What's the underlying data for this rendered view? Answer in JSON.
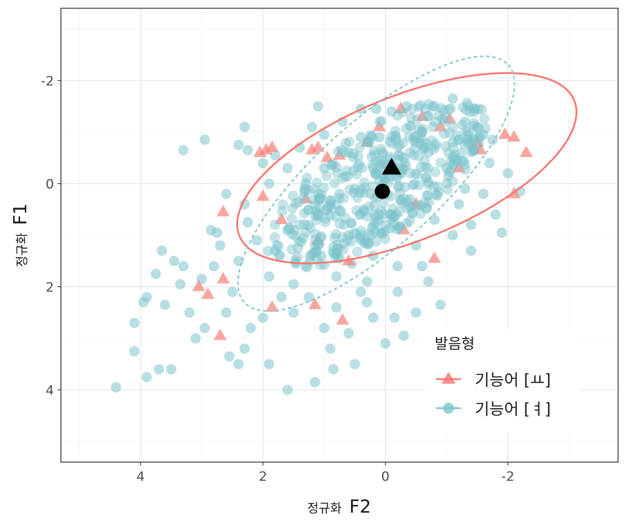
{
  "chart_data": {
    "type": "scatter",
    "title": "",
    "xlabel_prefix": "정규화",
    "xlabel_main": "F2",
    "ylabel_prefix": "정규화",
    "ylabel_main": "F1",
    "x_reversed": true,
    "y_reversed": true,
    "xlim": [
      5.3,
      -3.8
    ],
    "ylim": [
      -3.4,
      5.4
    ],
    "x_ticks": [
      4,
      2,
      0,
      -2
    ],
    "x_tick_labels": [
      "4",
      "2",
      "0",
      "-2"
    ],
    "y_ticks": [
      -2,
      0,
      2,
      4
    ],
    "y_tick_labels": [
      "-2",
      "0",
      "2",
      "4"
    ],
    "grid": true,
    "legend": {
      "title": "발음형",
      "placement": "bottom-right",
      "entries": [
        {
          "label": "기능어 [ㅛ]",
          "color": "#F8766D",
          "shape": "triangle"
        },
        {
          "label": "기능어 [ㅕ]",
          "color": "#7DC4CC",
          "shape": "circle"
        }
      ]
    },
    "series": [
      {
        "key": "yo",
        "color": "#F8766D",
        "marker": "triangle",
        "ellipse_style": "solid",
        "mean": [
          -0.1,
          -0.3
        ],
        "ellipse": {
          "center": [
            -0.35,
            -0.3
          ],
          "semi_major": 2.95,
          "semi_minor": 1.4,
          "angle_deg": 22
        },
        "points": [
          [
            2.05,
            -0.6
          ],
          [
            1.85,
            -0.7
          ],
          [
            1.95,
            -0.65
          ],
          [
            1.2,
            -0.65
          ],
          [
            1.1,
            -0.7
          ],
          [
            0.95,
            -0.5
          ],
          [
            -0.25,
            -1.45
          ],
          [
            -0.6,
            -1.3
          ],
          [
            -1.05,
            -1.25
          ],
          [
            -1.5,
            -0.8
          ],
          [
            -1.55,
            -0.65
          ],
          [
            -1.95,
            -0.95
          ],
          [
            -2.1,
            -0.9
          ],
          [
            -2.3,
            -0.6
          ],
          [
            -2.1,
            0.2
          ],
          [
            -1.2,
            -0.3
          ],
          [
            2.65,
            0.55
          ],
          [
            2.0,
            0.25
          ],
          [
            1.1,
            1.1
          ],
          [
            0.6,
            1.5
          ],
          [
            3.05,
            2.0
          ],
          [
            2.9,
            2.15
          ],
          [
            2.65,
            1.85
          ],
          [
            2.7,
            2.95
          ],
          [
            1.85,
            2.4
          ],
          [
            1.15,
            2.35
          ],
          [
            0.7,
            2.65
          ],
          [
            0.05,
            0.2
          ],
          [
            -0.3,
            0.9
          ],
          [
            -0.8,
            1.45
          ],
          [
            0.3,
            -0.8
          ],
          [
            0.75,
            -0.55
          ],
          [
            1.3,
            0.3
          ],
          [
            0.1,
            -1.1
          ],
          [
            -0.9,
            -1.1
          ],
          [
            1.7,
            0.7
          ],
          [
            -0.5,
            0.4
          ]
        ]
      },
      {
        "key": "yeo",
        "color": "#7DC4CC",
        "marker": "circle",
        "ellipse_style": "dashed",
        "mean": [
          0.05,
          0.15
        ],
        "ellipse": {
          "center": [
            0.15,
            0.0
          ],
          "semi_major": 2.9,
          "semi_minor": 1.2,
          "angle_deg": 42
        },
        "points": [
          [
            4.4,
            3.95
          ],
          [
            3.9,
            3.75
          ],
          [
            3.7,
            3.6
          ],
          [
            3.5,
            3.6
          ],
          [
            4.1,
            3.25
          ],
          [
            3.9,
            2.2
          ],
          [
            3.95,
            2.3
          ],
          [
            4.1,
            2.7
          ],
          [
            3.6,
            2.35
          ],
          [
            3.35,
            1.95
          ],
          [
            3.75,
            1.75
          ],
          [
            3.3,
            1.6
          ],
          [
            3.65,
            1.3
          ],
          [
            3.0,
            1.85
          ],
          [
            2.85,
            0.9
          ],
          [
            2.75,
            0.95
          ],
          [
            3.3,
            -0.65
          ],
          [
            2.95,
            -0.85
          ],
          [
            2.4,
            -0.75
          ],
          [
            2.3,
            -1.1
          ],
          [
            2.25,
            -0.65
          ],
          [
            1.2,
            -1.1
          ],
          [
            1.1,
            -1.5
          ],
          [
            0.15,
            -1.45
          ],
          [
            -0.35,
            -1.5
          ],
          [
            -1.1,
            -1.65
          ],
          [
            -1.45,
            -1.4
          ],
          [
            -1.5,
            -1.1
          ],
          [
            -1.6,
            -0.95
          ],
          [
            -1.75,
            -0.85
          ],
          [
            -1.45,
            -0.65
          ],
          [
            -2.2,
            0.15
          ],
          [
            -1.9,
            0.95
          ],
          [
            -1.4,
            1.3
          ],
          [
            -0.6,
            1.6
          ],
          [
            -0.9,
            2.35
          ],
          [
            -0.5,
            2.5
          ],
          [
            -0.3,
            2.95
          ],
          [
            0.0,
            3.1
          ],
          [
            0.5,
            3.5
          ],
          [
            0.85,
            3.6
          ],
          [
            1.15,
            3.85
          ],
          [
            1.6,
            4.0
          ],
          [
            1.9,
            3.5
          ],
          [
            2.3,
            3.2
          ],
          [
            2.4,
            3.5
          ],
          [
            2.55,
            3.35
          ],
          [
            3.1,
            3.0
          ],
          [
            2.95,
            2.8
          ],
          [
            2.6,
            2.5
          ],
          [
            2.2,
            2.8
          ],
          [
            2.0,
            2.6
          ],
          [
            1.5,
            2.5
          ],
          [
            1.0,
            2.8
          ],
          [
            0.8,
            2.4
          ],
          [
            0.4,
            2.1
          ],
          [
            0.3,
            1.9
          ],
          [
            1.3,
            1.6
          ],
          [
            1.8,
            1.3
          ],
          [
            2.4,
            1.5
          ],
          [
            2.1,
            1.1
          ],
          [
            1.6,
            0.9
          ],
          [
            1.1,
            0.6
          ],
          [
            2.6,
            0.2
          ],
          [
            2.3,
            0.4
          ],
          [
            1.9,
            0.0
          ],
          [
            1.6,
            -0.3
          ],
          [
            2.0,
            -0.4
          ],
          [
            1.8,
            -0.55
          ],
          [
            1.4,
            -0.7
          ],
          [
            1.0,
            -0.95
          ],
          [
            0.7,
            -1.2
          ],
          [
            0.4,
            -1.45
          ],
          [
            -0.1,
            -1.4
          ],
          [
            -0.8,
            -1.5
          ],
          [
            -1.3,
            -1.2
          ],
          [
            -1.1,
            -0.8
          ],
          [
            -0.7,
            -0.6
          ],
          [
            -1.0,
            -0.3
          ],
          [
            -1.3,
            0.1
          ],
          [
            -1.6,
            0.2
          ],
          [
            -1.2,
            0.4
          ],
          [
            -0.8,
            0.7
          ],
          [
            -1.1,
            1.0
          ],
          [
            -0.5,
            1.2
          ],
          [
            -0.2,
            1.6
          ],
          [
            0.2,
            1.4
          ],
          [
            0.6,
            1.0
          ],
          [
            0.9,
            0.4
          ],
          [
            0.5,
            0.1
          ],
          [
            0.2,
            -0.3
          ],
          [
            -0.3,
            -0.5
          ],
          [
            0.1,
            -0.9
          ],
          [
            0.6,
            -0.6
          ],
          [
            1.0,
            -0.3
          ],
          [
            1.3,
            0.0
          ],
          [
            0.8,
            1.8
          ],
          [
            0.3,
            2.3
          ],
          [
            -0.2,
            2.1
          ],
          [
            -0.7,
            1.9
          ],
          [
            1.9,
            1.8
          ],
          [
            2.7,
            1.2
          ],
          [
            3.2,
            2.5
          ],
          [
            2.5,
            2.1
          ],
          [
            1.25,
            2.2
          ],
          [
            0.6,
            2.9
          ],
          [
            0.2,
            2.6
          ],
          [
            -0.4,
            0.3
          ],
          [
            -0.1,
            0.6
          ],
          [
            0.35,
            0.5
          ],
          [
            0.75,
            0.2
          ],
          [
            1.15,
            1.2
          ],
          [
            0.0,
            -0.1
          ],
          [
            0.4,
            -0.9
          ],
          [
            -0.6,
            -1.0
          ],
          [
            -1.7,
            -0.4
          ],
          [
            -2.0,
            -0.2
          ],
          [
            -1.8,
            0.6
          ],
          [
            -1.4,
            0.8
          ],
          [
            1.5,
            1.95
          ],
          [
            1.05,
            1.4
          ],
          [
            0.55,
            1.55
          ],
          [
            2.25,
            0.75
          ],
          [
            2.8,
            1.6
          ],
          [
            3.45,
            1.5
          ],
          [
            1.7,
            2.2
          ],
          [
            0.9,
            3.2
          ],
          [
            -0.15,
            2.6
          ]
        ]
      }
    ]
  }
}
